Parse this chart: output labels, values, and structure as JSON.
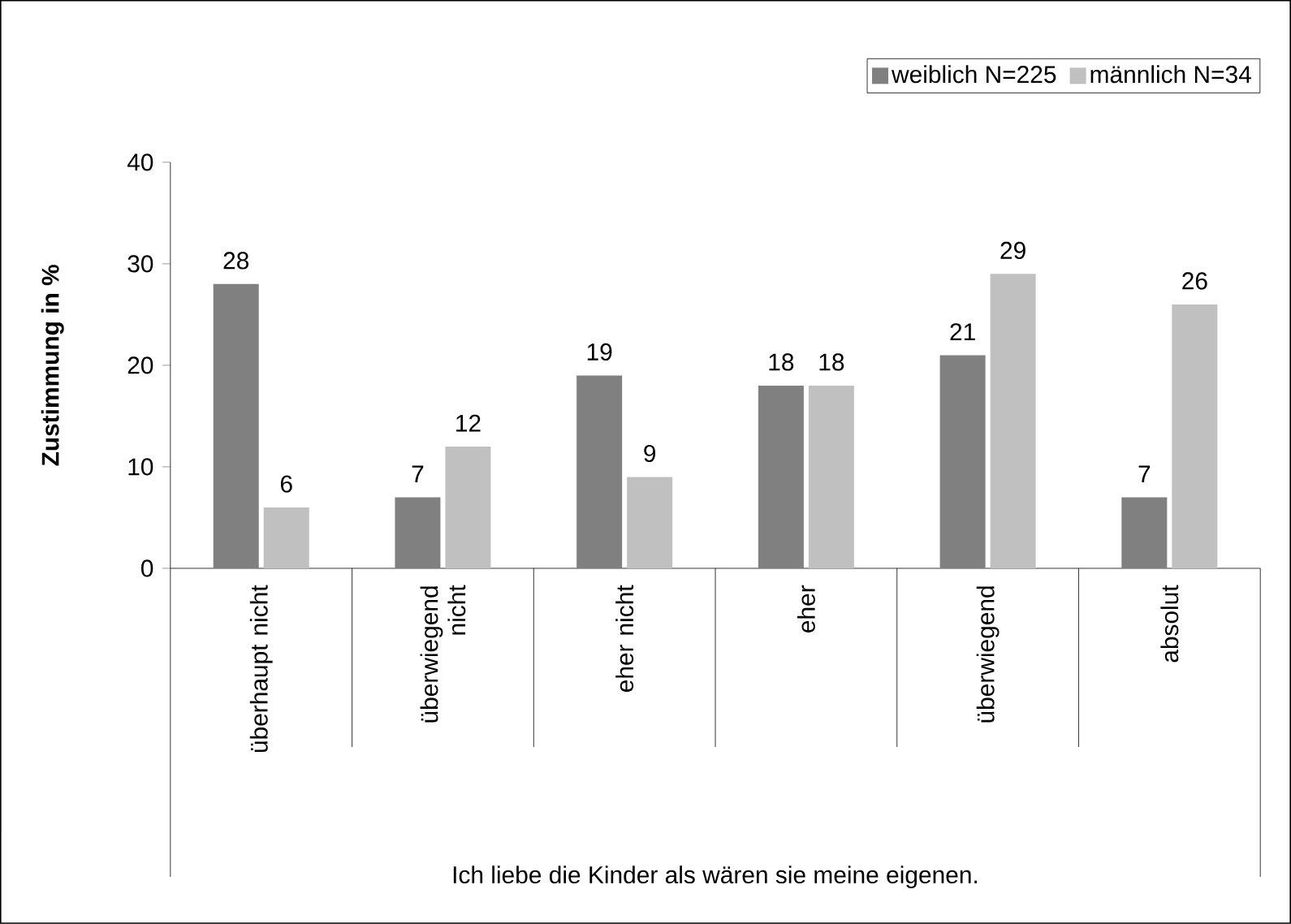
{
  "chart_data": {
    "type": "bar",
    "categories": [
      "überhaupt nicht",
      "überwiegend nicht",
      "eher nicht",
      "eher",
      "überwiegend",
      "absolut"
    ],
    "series": [
      {
        "name": "weiblich N=225",
        "color": "#808080",
        "values": [
          28,
          7,
          19,
          18,
          21,
          7
        ]
      },
      {
        "name": "männlich N=34",
        "color": "#c0c0c0",
        "values": [
          6,
          12,
          9,
          18,
          29,
          26
        ]
      }
    ],
    "annotations": [
      "Ich liebe die Kinder als wären sie meine eigenen."
    ],
    "ylabel": "Zustimmung in %",
    "ylim": [
      0,
      40
    ],
    "yticks": [
      0,
      10,
      20,
      30,
      40
    ],
    "data_labels": true,
    "legend": "top right",
    "grid": false
  }
}
